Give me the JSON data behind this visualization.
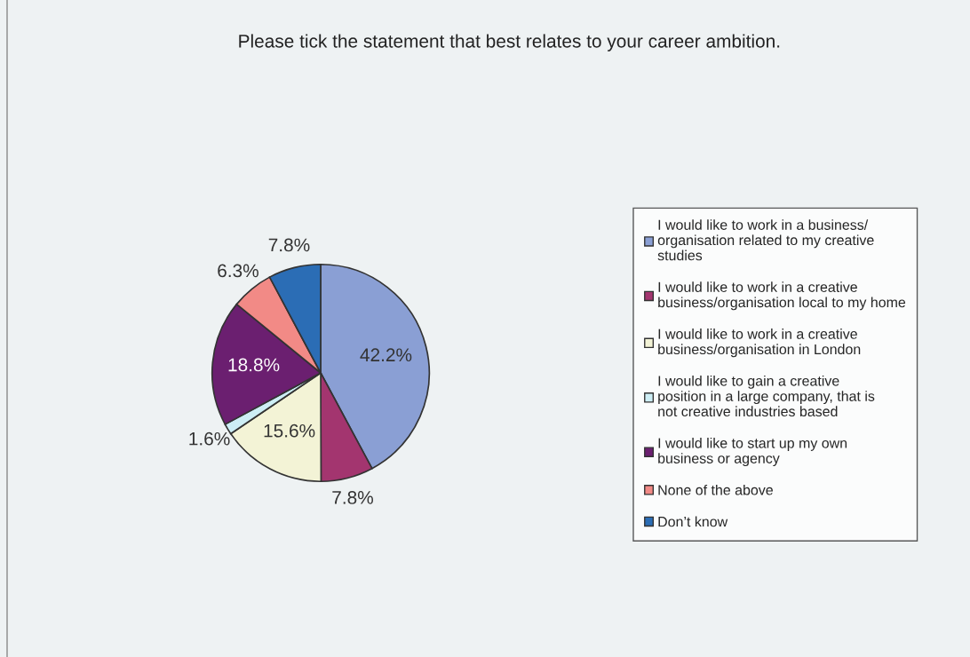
{
  "chart_data": {
    "type": "pie",
    "title": "Please tick the statement that best relates to your career ambition.",
    "categories": [
      "I would like to work in a business/ organisation related to my creative studies",
      "I would like to work in a creative business/organisation local to my home",
      "I would like to work in a creative business/organisation in London",
      "I would like to gain a creative position in a large company, that is not creative industries based",
      "I would like to start up my own business or agency",
      "None of the above",
      "Don’t know"
    ],
    "values": [
      42.2,
      7.8,
      15.6,
      1.6,
      18.8,
      6.3,
      7.8
    ],
    "colors": [
      "#8a9fd4",
      "#a3356f",
      "#f3f3d6",
      "#cdeef5",
      "#6b1f70",
      "#f28a86",
      "#2b6db5"
    ],
    "value_labels": [
      "42.2%",
      "7.8%",
      "15.6%",
      "1.6%",
      "18.8%",
      "6.3%",
      "7.8%"
    ],
    "legend": "right"
  }
}
